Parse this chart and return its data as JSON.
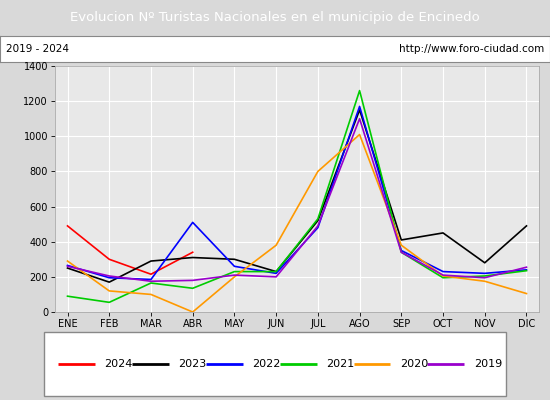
{
  "title": "Evolucion Nº Turistas Nacionales en el municipio de Encinedo",
  "title_color": "#ffffff",
  "title_bg_color": "#4472c4",
  "subtitle_left": "2019 - 2024",
  "subtitle_right": "http://www.foro-ciudad.com",
  "months": [
    "ENE",
    "FEB",
    "MAR",
    "ABR",
    "MAY",
    "JUN",
    "JUL",
    "AGO",
    "SEP",
    "OCT",
    "NOV",
    "DIC"
  ],
  "ylim": [
    0,
    1400
  ],
  "yticks": [
    0,
    200,
    400,
    600,
    800,
    1000,
    1200,
    1400
  ],
  "series": {
    "2024": {
      "color": "#ff0000",
      "data": [
        490,
        300,
        215,
        340,
        null,
        null,
        null,
        null,
        null,
        null,
        null,
        null
      ]
    },
    "2023": {
      "color": "#000000",
      "data": [
        250,
        170,
        290,
        310,
        300,
        230,
        520,
        1150,
        410,
        450,
        280,
        490
      ]
    },
    "2022": {
      "color": "#0000ff",
      "data": [
        265,
        195,
        185,
        510,
        260,
        220,
        480,
        1170,
        350,
        230,
        220,
        240
      ]
    },
    "2021": {
      "color": "#00cc00",
      "data": [
        90,
        55,
        165,
        135,
        230,
        230,
        530,
        1260,
        340,
        195,
        205,
        235
      ]
    },
    "2020": {
      "color": "#ff9900",
      "data": [
        290,
        120,
        100,
        0,
        200,
        380,
        800,
        1010,
        380,
        205,
        175,
        105
      ]
    },
    "2019": {
      "color": "#9900cc",
      "data": [
        260,
        205,
        175,
        180,
        210,
        200,
        490,
        1100,
        340,
        210,
        195,
        255
      ]
    }
  },
  "legend_order": [
    "2024",
    "2023",
    "2022",
    "2021",
    "2020",
    "2019"
  ],
  "bg_color": "#d9d9d9",
  "plot_bg_color": "#e8e8e8",
  "grid_color": "#ffffff"
}
